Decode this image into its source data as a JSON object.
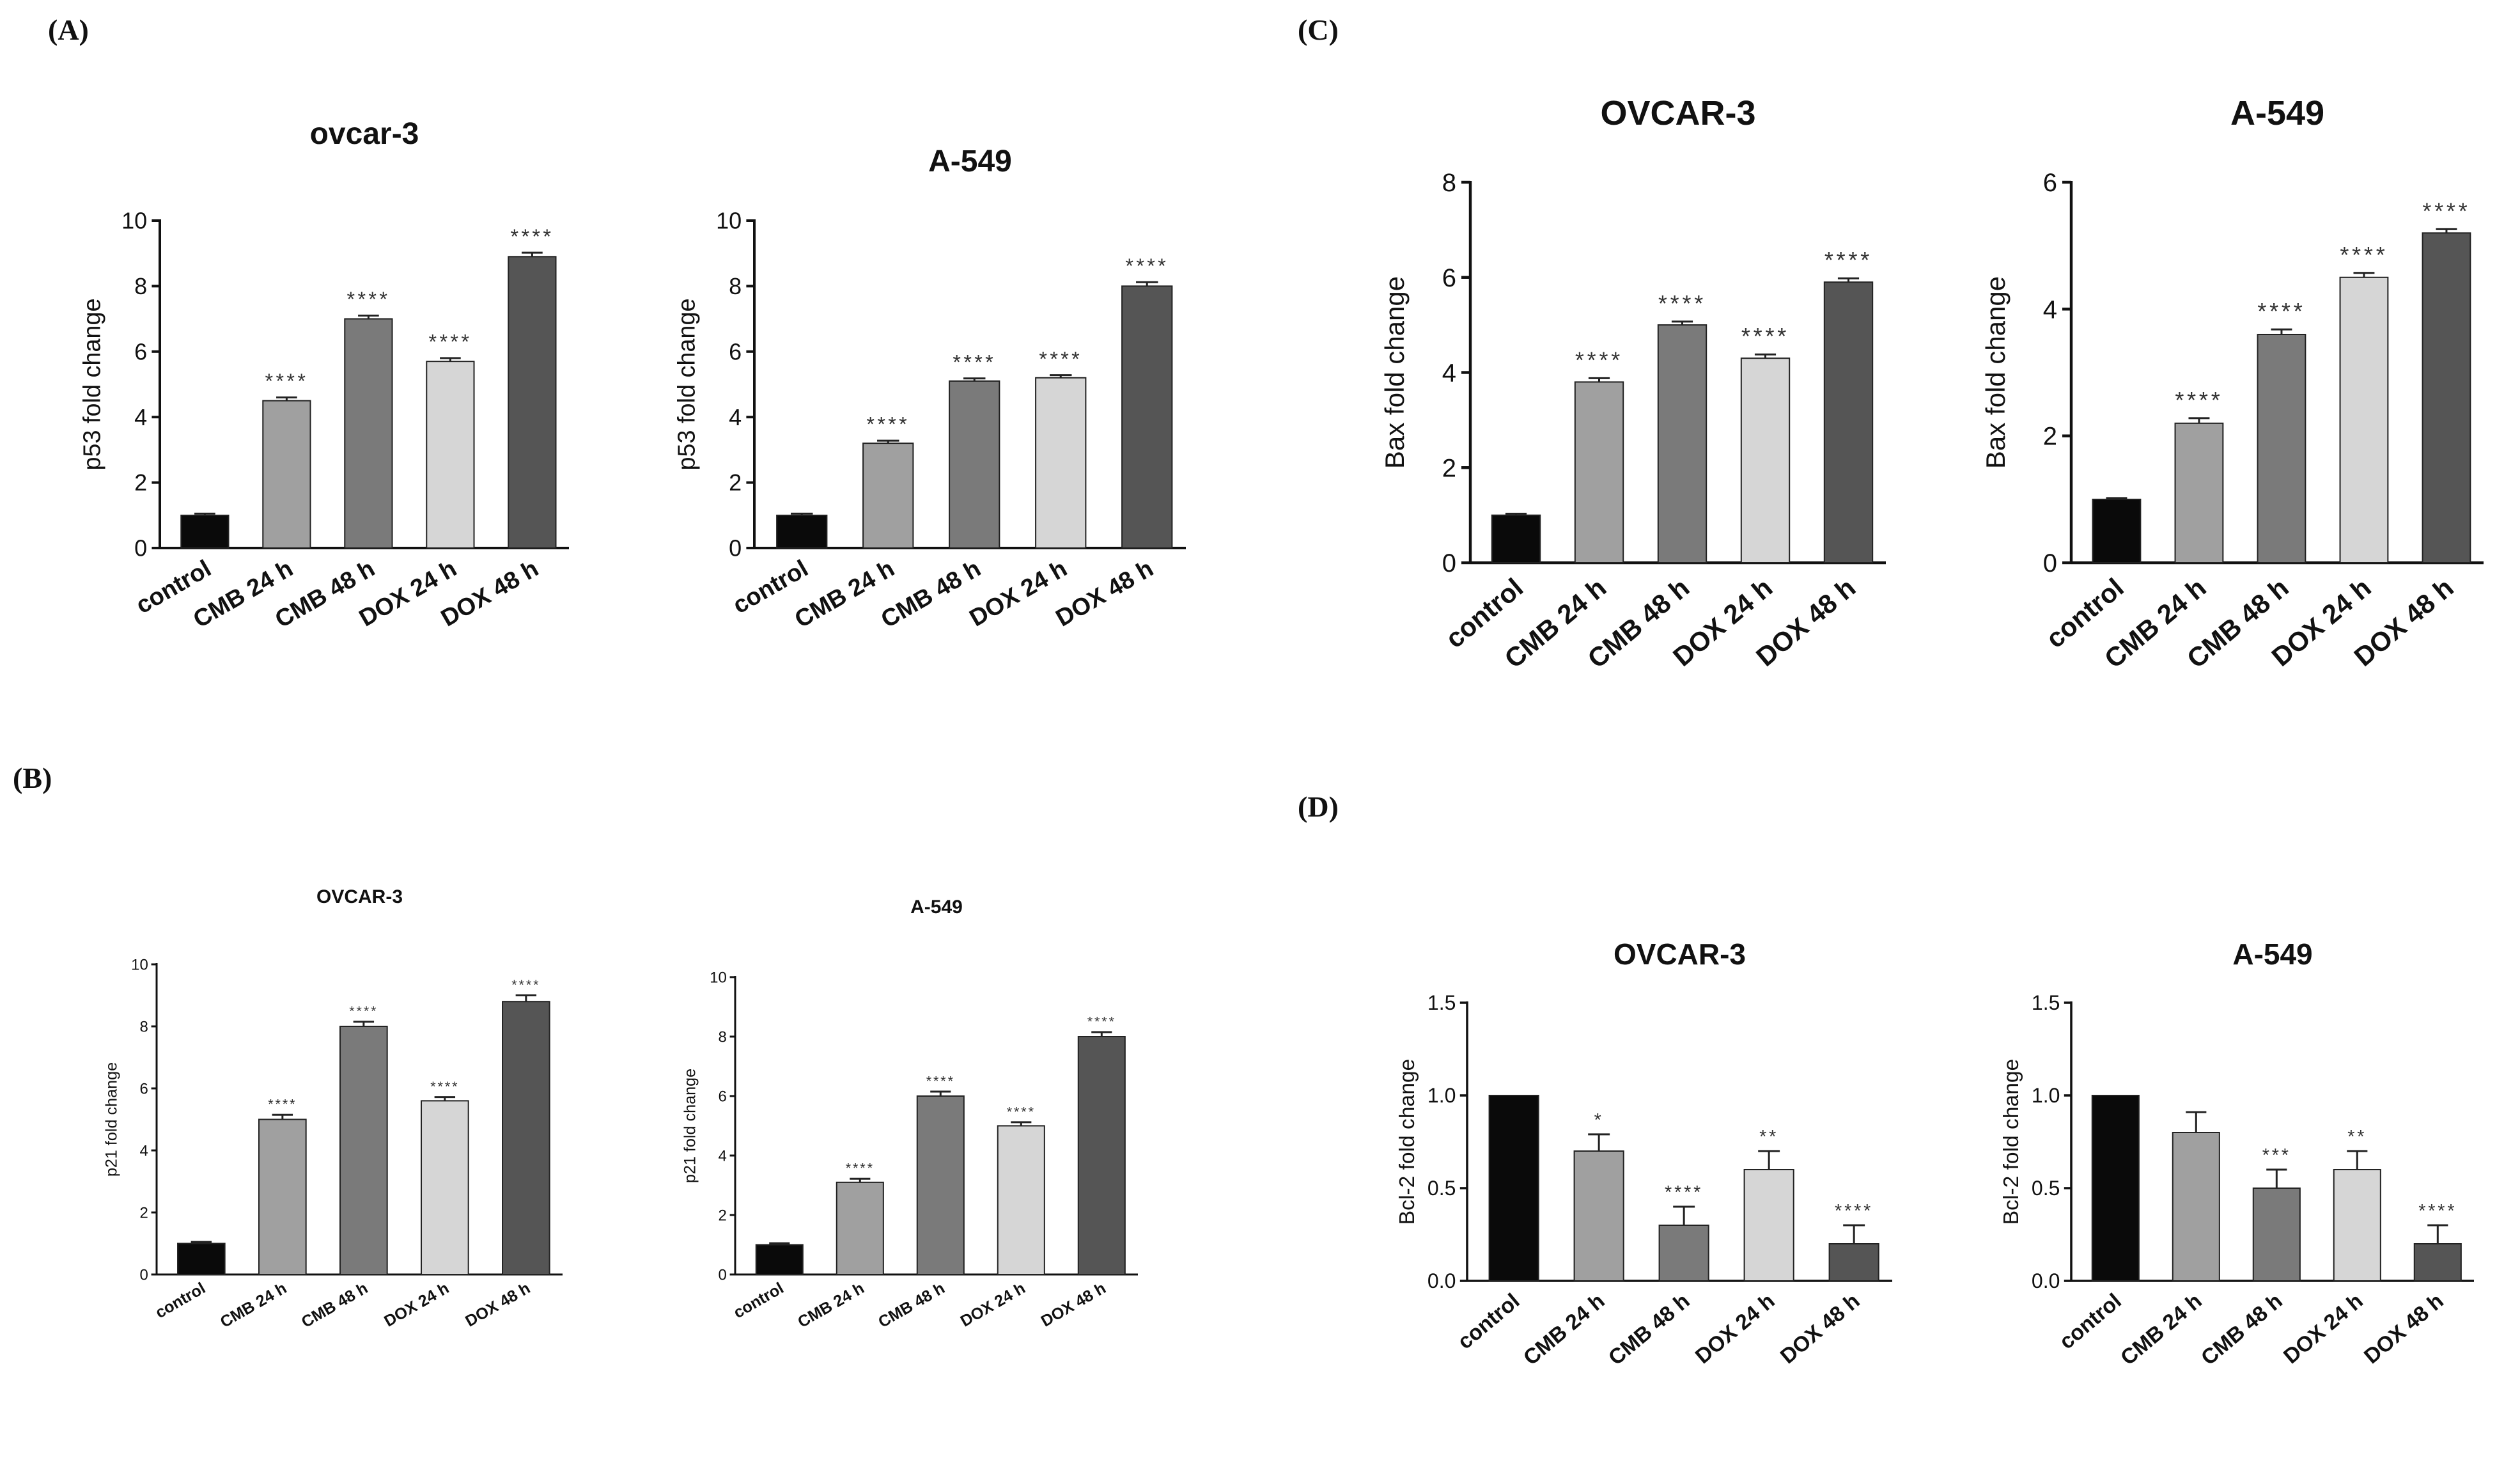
{
  "panels": [
    {
      "label": "(A)"
    },
    {
      "label": "(B)"
    },
    {
      "label": "(C)"
    },
    {
      "label": "(D)"
    }
  ],
  "colors": {
    "control": "#0a0a0a",
    "cmb24": "#a0a0a0",
    "cmb48": "#7a7a7a",
    "dox24": "#d6d6d6",
    "dox48": "#555555",
    "axis": "#111111"
  },
  "chart_data": [
    {
      "panel": "A",
      "type": "bar",
      "title": "ovcar-3",
      "title_size": "large",
      "xlabel": "",
      "ylabel": "p53 fold change",
      "categories": [
        "control",
        "CMB 24 h",
        "CMB 48 h",
        "DOX 24 h",
        "DOX 48 h"
      ],
      "values": [
        1.0,
        4.5,
        7.0,
        5.7,
        8.9
      ],
      "errors": [
        0.05,
        0.1,
        0.1,
        0.1,
        0.12
      ],
      "significance": [
        "",
        "****",
        "****",
        "****",
        "****"
      ],
      "ylim": [
        0,
        10
      ],
      "yticks": [
        "0",
        "2",
        "4",
        "6",
        "8",
        "10"
      ],
      "tick_values": [
        0,
        2,
        4,
        6,
        8,
        10
      ]
    },
    {
      "panel": "A",
      "type": "bar",
      "title": "A-549",
      "title_size": "large",
      "xlabel": "",
      "ylabel": "p53 fold change",
      "categories": [
        "control",
        "CMB 24 h",
        "CMB 48 h",
        "DOX 24 h",
        "DOX 48 h"
      ],
      "values": [
        1.0,
        3.2,
        5.1,
        5.2,
        8.0
      ],
      "errors": [
        0.05,
        0.08,
        0.08,
        0.08,
        0.12
      ],
      "significance": [
        "",
        "****",
        "****",
        "****",
        "****"
      ],
      "ylim": [
        0,
        10
      ],
      "yticks": [
        "0",
        "2",
        "4",
        "6",
        "8",
        "10"
      ],
      "tick_values": [
        0,
        2,
        4,
        6,
        8,
        10
      ]
    },
    {
      "panel": "B",
      "type": "bar",
      "title": "OVCAR-3",
      "title_size": "small",
      "xlabel": "",
      "ylabel": "p21 fold change",
      "categories": [
        "control",
        "CMB 24 h",
        "CMB 48 h",
        "DOX 24 h",
        "DOX 48 h"
      ],
      "values": [
        1.0,
        5.0,
        8.0,
        5.6,
        8.8
      ],
      "errors": [
        0.05,
        0.15,
        0.15,
        0.12,
        0.2
      ],
      "significance": [
        "",
        "****",
        "****",
        "****",
        "****"
      ],
      "ylim": [
        0,
        10
      ],
      "yticks": [
        "0",
        "2",
        "4",
        "6",
        "8",
        "10"
      ],
      "tick_values": [
        0,
        2,
        4,
        6,
        8,
        10
      ]
    },
    {
      "panel": "B",
      "type": "bar",
      "title": "A-549",
      "title_size": "small",
      "xlabel": "",
      "ylabel": "p21 fold change",
      "categories": [
        "control",
        "CMB 24 h",
        "CMB 48 h",
        "DOX 24 h",
        "DOX 48 h"
      ],
      "values": [
        1.0,
        3.1,
        6.0,
        5.0,
        8.0
      ],
      "errors": [
        0.05,
        0.12,
        0.15,
        0.12,
        0.15
      ],
      "significance": [
        "",
        "****",
        "****",
        "****",
        "****"
      ],
      "ylim": [
        0,
        10
      ],
      "yticks": [
        "0",
        "2",
        "4",
        "6",
        "8",
        "10"
      ],
      "tick_values": [
        0,
        2,
        4,
        6,
        8,
        10
      ]
    },
    {
      "panel": "C",
      "type": "bar",
      "title": "OVCAR-3",
      "title_size": "large",
      "xlabel": "",
      "ylabel": "Bax fold change",
      "categories": [
        "control",
        "CMB 24 h",
        "CMB 48 h",
        "DOX 24 h",
        "DOX 48 h"
      ],
      "values": [
        1.0,
        3.8,
        5.0,
        4.3,
        5.9
      ],
      "errors": [
        0.03,
        0.08,
        0.07,
        0.08,
        0.08
      ],
      "significance": [
        "",
        "****",
        "****",
        "****",
        "****"
      ],
      "ylim": [
        0,
        8
      ],
      "yticks": [
        "0",
        "2",
        "4",
        "6",
        "8"
      ],
      "tick_values": [
        0,
        2,
        4,
        6,
        8
      ]
    },
    {
      "panel": "C",
      "type": "bar",
      "title": "A-549",
      "title_size": "large",
      "xlabel": "",
      "ylabel": "Bax fold change",
      "categories": [
        "control",
        "CMB 24 h",
        "CMB 48 h",
        "DOX 24 h",
        "DOX 48 h"
      ],
      "values": [
        1.0,
        2.2,
        3.6,
        4.5,
        5.2
      ],
      "errors": [
        0.02,
        0.08,
        0.08,
        0.07,
        0.06
      ],
      "significance": [
        "",
        "****",
        "****",
        "****",
        "****"
      ],
      "ylim": [
        0,
        6
      ],
      "yticks": [
        "0",
        "2",
        "4",
        "6"
      ],
      "tick_values": [
        0,
        2,
        4,
        6
      ]
    },
    {
      "panel": "D",
      "type": "bar",
      "title": "OVCAR-3",
      "title_size": "large",
      "xlabel": "",
      "ylabel": "Bcl-2 fold change",
      "categories": [
        "control",
        "CMB 24 h",
        "CMB 48 h",
        "DOX 24 h",
        "DOX 48 h"
      ],
      "values": [
        1.0,
        0.7,
        0.3,
        0.6,
        0.2
      ],
      "errors": [
        0.0,
        0.09,
        0.1,
        0.1,
        0.1
      ],
      "significance": [
        "",
        "*",
        "****",
        "**",
        "****"
      ],
      "ylim": [
        0,
        1.5
      ],
      "yticks": [
        "0.0",
        "0.5",
        "1.0",
        "1.5"
      ],
      "tick_values": [
        0,
        0.5,
        1.0,
        1.5
      ]
    },
    {
      "panel": "D",
      "type": "bar",
      "title": "A-549",
      "title_size": "large",
      "xlabel": "",
      "ylabel": "Bcl-2 fold change",
      "categories": [
        "control",
        "CMB 24 h",
        "CMB 48 h",
        "DOX 24 h",
        "DOX 48 h"
      ],
      "values": [
        1.0,
        0.8,
        0.5,
        0.6,
        0.2
      ],
      "errors": [
        0.0,
        0.11,
        0.1,
        0.1,
        0.1
      ],
      "significance": [
        "",
        "",
        "***",
        "**",
        "****"
      ],
      "ylim": [
        0,
        1.5
      ],
      "yticks": [
        "0.0",
        "0.5",
        "1.0",
        "1.5"
      ],
      "tick_values": [
        0,
        0.5,
        1.0,
        1.5
      ]
    }
  ]
}
